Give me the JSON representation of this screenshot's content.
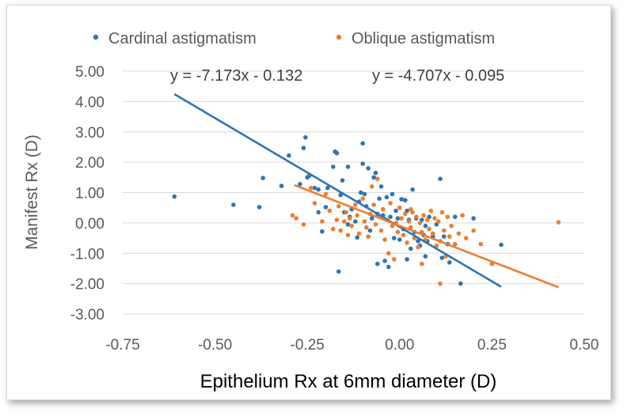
{
  "chart_data": {
    "type": "scatter",
    "xlabel": "Epithelium Rx at 6mm diameter (D)",
    "ylabel": "Manifest Rx (D)",
    "xlim": [
      -0.75,
      0.5
    ],
    "ylim": [
      -3.0,
      5.0
    ],
    "xticks": [
      "-0.75",
      "-0.50",
      "-0.25",
      "0.00",
      "0.25",
      "0.50"
    ],
    "yticks": [
      "5.00",
      "4.00",
      "3.00",
      "2.00",
      "1.00",
      "0.00",
      "-1.00",
      "-2.00",
      "-3.00"
    ],
    "legend_position": "top",
    "series": [
      {
        "name": "Cardinal astigmatism",
        "color": "#2E75B6",
        "trendline": {
          "label": "y = -7.173x - 0.132",
          "slope": -7.173,
          "intercept": -0.132,
          "x_range": [
            -0.61,
            0.275
          ]
        },
        "points": [
          [
            -0.61,
            0.87
          ],
          [
            -0.45,
            0.6
          ],
          [
            -0.38,
            0.52
          ],
          [
            -0.37,
            1.48
          ],
          [
            -0.32,
            1.22
          ],
          [
            -0.3,
            2.22
          ],
          [
            -0.27,
            1.28
          ],
          [
            -0.26,
            2.47
          ],
          [
            -0.255,
            2.82
          ],
          [
            -0.25,
            1.5
          ],
          [
            -0.245,
            1.55
          ],
          [
            -0.23,
            1.15
          ],
          [
            -0.22,
            1.1
          ],
          [
            -0.21,
            -0.28
          ],
          [
            -0.2,
            0.52
          ],
          [
            -0.195,
            1.15
          ],
          [
            -0.18,
            1.85
          ],
          [
            -0.175,
            2.35
          ],
          [
            -0.17,
            2.3
          ],
          [
            -0.165,
            -1.6
          ],
          [
            -0.16,
            0.92
          ],
          [
            -0.155,
            1.4
          ],
          [
            -0.15,
            0.35
          ],
          [
            -0.14,
            1.85
          ],
          [
            -0.135,
            0.2
          ],
          [
            -0.13,
            0.45
          ],
          [
            -0.12,
            0.05
          ],
          [
            -0.115,
            -0.48
          ],
          [
            -0.11,
            0.7
          ],
          [
            -0.105,
            1.0
          ],
          [
            -0.1,
            2.62
          ],
          [
            -0.1,
            1.95
          ],
          [
            -0.095,
            0.95
          ],
          [
            -0.09,
            0.55
          ],
          [
            -0.085,
            1.8
          ],
          [
            -0.08,
            -0.25
          ],
          [
            -0.075,
            0.15
          ],
          [
            -0.07,
            1.5
          ],
          [
            -0.065,
            1.65
          ],
          [
            -0.06,
            -1.35
          ],
          [
            -0.055,
            0.8
          ],
          [
            -0.05,
            1.2
          ],
          [
            -0.045,
            0.25
          ],
          [
            -0.04,
            -1.25
          ],
          [
            -0.035,
            0.85
          ],
          [
            -0.03,
            -1.45
          ],
          [
            -0.025,
            0.2
          ],
          [
            -0.02,
            0.95
          ],
          [
            -0.015,
            -0.5
          ],
          [
            -0.01,
            0.4
          ],
          [
            -0.005,
            0.15
          ],
          [
            0.0,
            -0.55
          ],
          [
            0.005,
            0.78
          ],
          [
            0.01,
            -0.2
          ],
          [
            0.015,
            0.75
          ],
          [
            0.02,
            -1.2
          ],
          [
            0.025,
            0.1
          ],
          [
            0.03,
            -0.85
          ],
          [
            0.035,
            1.1
          ],
          [
            0.04,
            -0.3
          ],
          [
            0.045,
            0.15
          ],
          [
            0.05,
            -0.6
          ],
          [
            0.055,
            -0.75
          ],
          [
            0.06,
            0.1
          ],
          [
            0.065,
            -0.4
          ],
          [
            0.07,
            -1.1
          ],
          [
            0.075,
            -0.6
          ],
          [
            0.08,
            0.2
          ],
          [
            0.09,
            -0.45
          ],
          [
            0.1,
            -0.05
          ],
          [
            0.11,
            1.45
          ],
          [
            0.115,
            -1.15
          ],
          [
            0.12,
            -0.45
          ],
          [
            0.13,
            -0.7
          ],
          [
            0.135,
            -1.3
          ],
          [
            0.15,
            0.2
          ],
          [
            0.165,
            -2.0
          ],
          [
            0.2,
            0.15
          ],
          [
            0.275,
            -0.72
          ],
          [
            -0.22,
            0.35
          ],
          [
            -0.14,
            -0.05
          ],
          [
            -0.06,
            0.3
          ],
          [
            0.02,
            0.4
          ],
          [
            0.07,
            -0.1
          ]
        ]
      },
      {
        "name": "Oblique astigmatism",
        "color": "#ED7D31",
        "trendline": {
          "label": "y = -4.707x - 0.095",
          "slope": -4.707,
          "intercept": -0.095,
          "x_range": [
            -0.285,
            0.43
          ]
        },
        "points": [
          [
            -0.29,
            0.25
          ],
          [
            -0.28,
            0.15
          ],
          [
            -0.26,
            -0.05
          ],
          [
            -0.24,
            1.15
          ],
          [
            -0.21,
            0.05
          ],
          [
            -0.2,
            0.95
          ],
          [
            -0.19,
            0.4
          ],
          [
            -0.18,
            -0.2
          ],
          [
            -0.17,
            0.1
          ],
          [
            -0.165,
            0.55
          ],
          [
            -0.16,
            -0.25
          ],
          [
            -0.15,
            0.05
          ],
          [
            -0.145,
            0.35
          ],
          [
            -0.14,
            -0.4
          ],
          [
            -0.135,
            0.15
          ],
          [
            -0.13,
            -0.1
          ],
          [
            -0.12,
            0.6
          ],
          [
            -0.115,
            0.25
          ],
          [
            -0.11,
            -0.35
          ],
          [
            -0.1,
            0.8
          ],
          [
            -0.095,
            0.05
          ],
          [
            -0.09,
            -0.15
          ],
          [
            -0.085,
            -0.45
          ],
          [
            -0.08,
            0.3
          ],
          [
            -0.075,
            1.2
          ],
          [
            -0.07,
            0.6
          ],
          [
            -0.065,
            -0.05
          ],
          [
            -0.06,
            1.45
          ],
          [
            -0.055,
            0.2
          ],
          [
            -0.05,
            -0.25
          ],
          [
            -0.045,
            0.45
          ],
          [
            -0.04,
            -0.55
          ],
          [
            -0.035,
            0.1
          ],
          [
            -0.03,
            -1.0
          ],
          [
            -0.025,
            0.65
          ],
          [
            -0.02,
            -0.1
          ],
          [
            -0.015,
            -1.2
          ],
          [
            -0.01,
            0.0
          ],
          [
            -0.005,
            -0.3
          ],
          [
            0.0,
            0.5
          ],
          [
            0.005,
            0.15
          ],
          [
            0.01,
            -0.4
          ],
          [
            0.015,
            0.3
          ],
          [
            0.02,
            -0.65
          ],
          [
            0.025,
            0.05
          ],
          [
            0.03,
            -0.15
          ],
          [
            0.035,
            0.35
          ],
          [
            0.04,
            -0.5
          ],
          [
            0.045,
            0.2
          ],
          [
            0.05,
            -0.8
          ],
          [
            0.055,
            0.0
          ],
          [
            0.06,
            -0.3
          ],
          [
            0.065,
            0.25
          ],
          [
            0.07,
            -0.55
          ],
          [
            0.075,
            0.1
          ],
          [
            0.08,
            -0.2
          ],
          [
            0.085,
            0.4
          ],
          [
            0.09,
            -0.35
          ],
          [
            0.095,
            0.15
          ],
          [
            0.1,
            -0.75
          ],
          [
            0.105,
            0.05
          ],
          [
            0.11,
            -0.6
          ],
          [
            0.115,
            0.35
          ],
          [
            0.12,
            -0.25
          ],
          [
            0.125,
            -1.1
          ],
          [
            0.13,
            0.2
          ],
          [
            0.135,
            -0.45
          ],
          [
            0.14,
            -0.1
          ],
          [
            0.15,
            -0.7
          ],
          [
            0.16,
            -0.35
          ],
          [
            0.17,
            0.25
          ],
          [
            0.18,
            -0.5
          ],
          [
            0.2,
            -0.25
          ],
          [
            0.22,
            -0.7
          ],
          [
            0.25,
            -1.35
          ],
          [
            0.43,
            0.02
          ],
          [
            0.11,
            -2.0
          ],
          [
            0.06,
            -1.35
          ],
          [
            0.03,
            0.45
          ],
          [
            -0.23,
            0.65
          ]
        ]
      }
    ]
  }
}
